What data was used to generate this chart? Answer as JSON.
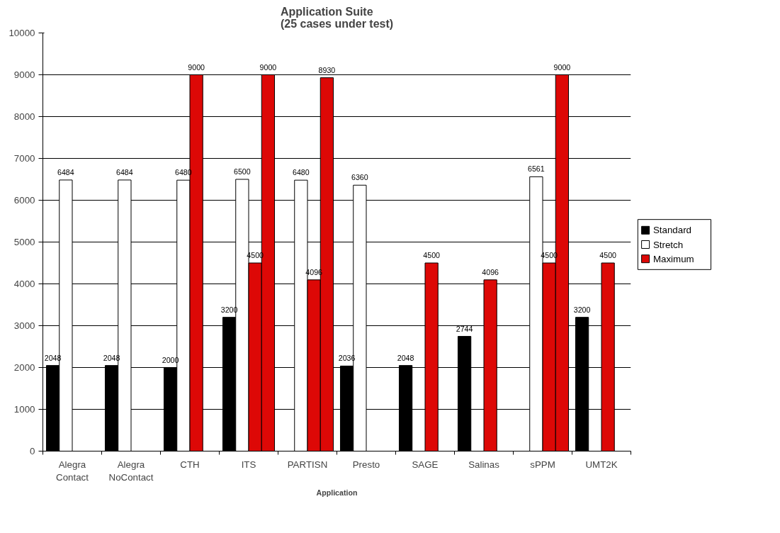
{
  "chart_data": {
    "type": "bar",
    "title": "Application Suite\n(25 cases under test)",
    "xlabel": "Application",
    "categories": [
      "Alegra\nContact",
      "Alegra\nNoContact",
      "CTH",
      "ITS",
      "PARTISN",
      "Presto",
      "SAGE",
      "Salinas",
      "sPPM",
      "UMT2K"
    ],
    "series": [
      {
        "name": "Standard",
        "color": "#000000",
        "values": [
          2048,
          2048,
          2000,
          3200,
          null,
          2036,
          2048,
          2744,
          null,
          3200
        ]
      },
      {
        "name": "Stretch",
        "color": "#ffffff",
        "values": [
          6484,
          6484,
          6480,
          6500,
          6480,
          6360,
          null,
          null,
          6561,
          null
        ]
      },
      {
        "name": "Maximum",
        "color": "#dd0806",
        "values": [
          null,
          null,
          9000,
          4500,
          4096,
          null,
          4500,
          4096,
          4500,
          4500
        ]
      },
      {
        "color": "#dd0806",
        "values": [
          null,
          null,
          null,
          9000,
          8930,
          null,
          null,
          null,
          9000,
          null
        ]
      }
    ],
    "ylim": [
      0,
      10000
    ],
    "yticks": [
      0,
      1000,
      2000,
      3000,
      4000,
      5000,
      6000,
      7000,
      8000,
      9000,
      10000
    ],
    "grid": "y",
    "legend": "right",
    "data_labels": true
  }
}
